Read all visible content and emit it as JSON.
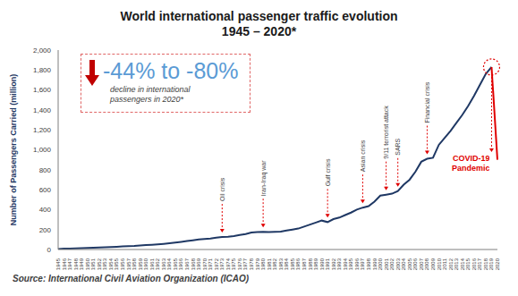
{
  "chart_data": {
    "type": "line",
    "title": "World international passenger traffic evolution",
    "subtitle": "1945 – 2020*",
    "y_label": "Number of Passengers Carried (million)",
    "x": [
      1945,
      1946,
      1947,
      1948,
      1949,
      1950,
      1951,
      1952,
      1953,
      1954,
      1955,
      1956,
      1957,
      1958,
      1959,
      1960,
      1961,
      1962,
      1963,
      1964,
      1965,
      1966,
      1967,
      1968,
      1969,
      1970,
      1971,
      1972,
      1973,
      1974,
      1975,
      1976,
      1977,
      1978,
      1979,
      1980,
      1981,
      1982,
      1983,
      1984,
      1985,
      1986,
      1987,
      1988,
      1989,
      1990,
      1991,
      1992,
      1993,
      1994,
      1995,
      1996,
      1997,
      1998,
      1999,
      2000,
      2001,
      2002,
      2003,
      2004,
      2005,
      2006,
      2007,
      2008,
      2009,
      2010,
      2011,
      2012,
      2013,
      2014,
      2015,
      2016,
      2017,
      2018,
      2019,
      2020
    ],
    "series": [
      {
        "color": "#1f3864",
        "values": [
          5,
          8,
          10,
          12,
          14,
          16,
          18,
          20,
          22,
          25,
          28,
          31,
          34,
          36,
          40,
          45,
          48,
          52,
          57,
          63,
          70,
          77,
          85,
          92,
          100,
          105,
          110,
          118,
          125,
          128,
          135,
          145,
          155,
          170,
          175,
          178,
          175,
          178,
          180,
          190,
          200,
          210,
          230,
          250,
          270,
          290,
          275,
          305,
          320,
          345,
          370,
          400,
          420,
          435,
          480,
          540,
          550,
          560,
          585,
          650,
          700,
          780,
          880,
          910,
          920,
          1050,
          1120,
          1190,
          1270,
          1350,
          1440,
          1540,
          1650,
          1760,
          1830,
          null
        ]
      },
      {
        "color": "#e00000",
        "values": [
          null,
          null,
          null,
          null,
          null,
          null,
          null,
          null,
          null,
          null,
          null,
          null,
          null,
          null,
          null,
          null,
          null,
          null,
          null,
          null,
          null,
          null,
          null,
          null,
          null,
          null,
          null,
          null,
          null,
          null,
          null,
          null,
          null,
          null,
          null,
          null,
          null,
          null,
          null,
          null,
          null,
          null,
          null,
          null,
          null,
          null,
          null,
          null,
          null,
          null,
          null,
          null,
          null,
          null,
          null,
          null,
          null,
          null,
          null,
          null,
          null,
          null,
          null,
          null,
          null,
          null,
          null,
          null,
          null,
          null,
          null,
          null,
          null,
          null,
          1830,
          900
        ]
      }
    ],
    "ylim": [
      0,
      2000
    ],
    "yticks": [
      0,
      200,
      400,
      600,
      800,
      {
        "value": 1000,
        "label": "1,000"
      },
      {
        "value": 1200,
        "label": "1,200"
      },
      {
        "value": 1400,
        "label": "1,400"
      },
      {
        "value": 1600,
        "label": "1,600"
      },
      {
        "value": 1800,
        "label": "1,800"
      },
      {
        "value": 2000,
        "label": "2,000"
      }
    ],
    "grid": false,
    "annotations": [
      {
        "x": 1973,
        "text": "Oil crisis"
      },
      {
        "x": 1980,
        "text": "Iran-Iraq war"
      },
      {
        "x": 1991,
        "text": "Gulf crisis"
      },
      {
        "x": 1997,
        "text": "Asian crisis"
      },
      {
        "x": 2001,
        "text": "9/11 terrorist attack"
      },
      {
        "x": 2003,
        "text": "SARS"
      },
      {
        "x": 2008,
        "text": "Financial crisis"
      }
    ],
    "highlight": {
      "x": 2019,
      "text": "COVID-19 Pandemic",
      "color": "#e00000"
    },
    "callout": {
      "headline": "-44% to -80%",
      "text": "decline in international passengers in 2020*"
    },
    "source": "Source: International Civil Aviation Organization (ICAO)"
  }
}
